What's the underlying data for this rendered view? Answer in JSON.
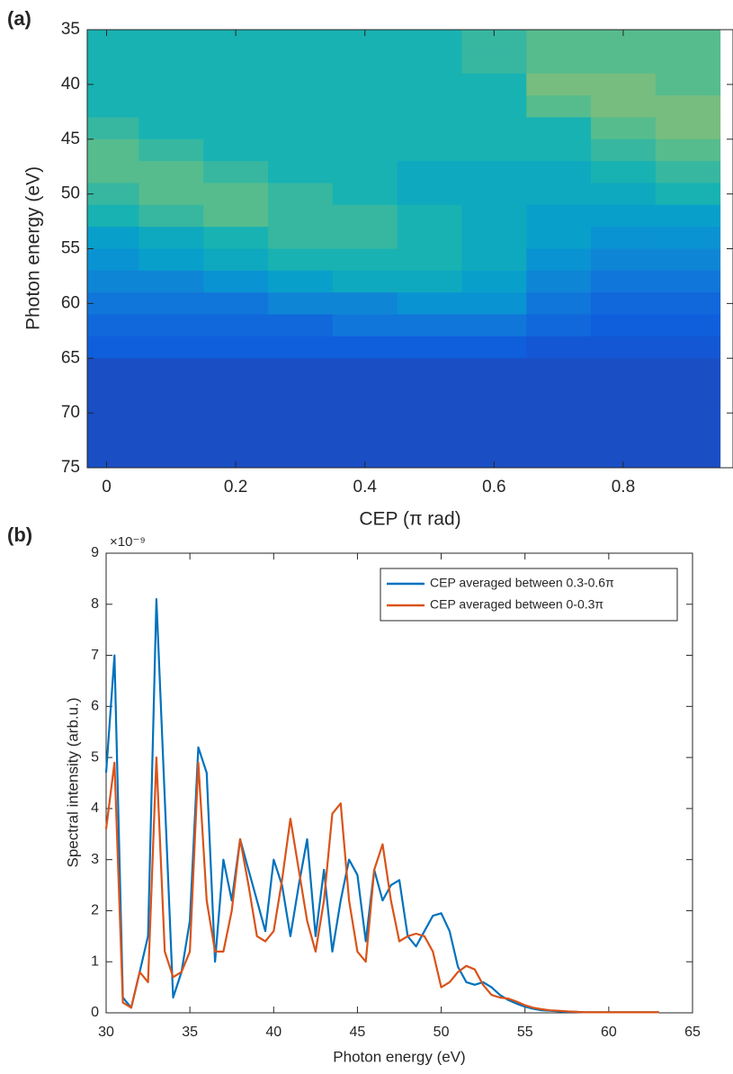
{
  "chart_data": [
    {
      "type": "heatmap",
      "panel_label": "(a)",
      "x_label": "CEP (π rad)",
      "y_label": "Photon energy (eV)",
      "colormap": "parula",
      "y_reversed": true,
      "x": [
        0,
        0.1,
        0.2,
        0.3,
        0.4,
        0.5,
        0.6,
        0.7,
        0.8,
        0.9
      ],
      "y": [
        36,
        38,
        40,
        42,
        44,
        46,
        48,
        50,
        52,
        54,
        56,
        58,
        60,
        62,
        64,
        66,
        68,
        70,
        72,
        74
      ],
      "values": [
        [
          0.45,
          0.45,
          0.45,
          0.45,
          0.45,
          0.45,
          0.5,
          0.55,
          0.55,
          0.55
        ],
        [
          0.45,
          0.45,
          0.45,
          0.45,
          0.45,
          0.45,
          0.5,
          0.55,
          0.55,
          0.55
        ],
        [
          0.45,
          0.45,
          0.45,
          0.45,
          0.45,
          0.45,
          0.45,
          0.6,
          0.6,
          0.55
        ],
        [
          0.45,
          0.45,
          0.45,
          0.45,
          0.45,
          0.45,
          0.45,
          0.55,
          0.6,
          0.6
        ],
        [
          0.5,
          0.45,
          0.45,
          0.45,
          0.45,
          0.45,
          0.45,
          0.45,
          0.55,
          0.6
        ],
        [
          0.55,
          0.5,
          0.45,
          0.45,
          0.45,
          0.45,
          0.45,
          0.45,
          0.5,
          0.55
        ],
        [
          0.55,
          0.55,
          0.5,
          0.45,
          0.45,
          0.4,
          0.4,
          0.4,
          0.45,
          0.5
        ],
        [
          0.5,
          0.55,
          0.55,
          0.5,
          0.45,
          0.4,
          0.4,
          0.4,
          0.4,
          0.45
        ],
        [
          0.45,
          0.5,
          0.55,
          0.5,
          0.5,
          0.45,
          0.4,
          0.35,
          0.35,
          0.35
        ],
        [
          0.35,
          0.4,
          0.45,
          0.5,
          0.5,
          0.45,
          0.4,
          0.35,
          0.3,
          0.3
        ],
        [
          0.3,
          0.35,
          0.4,
          0.45,
          0.45,
          0.45,
          0.4,
          0.3,
          0.25,
          0.25
        ],
        [
          0.25,
          0.25,
          0.3,
          0.35,
          0.4,
          0.4,
          0.35,
          0.25,
          0.2,
          0.2
        ],
        [
          0.2,
          0.2,
          0.2,
          0.25,
          0.25,
          0.3,
          0.3,
          0.2,
          0.15,
          0.15
        ],
        [
          0.15,
          0.15,
          0.15,
          0.15,
          0.2,
          0.2,
          0.2,
          0.15,
          0.12,
          0.12
        ],
        [
          0.12,
          0.12,
          0.12,
          0.12,
          0.12,
          0.12,
          0.12,
          0.1,
          0.1,
          0.1
        ],
        [
          0.08,
          0.08,
          0.08,
          0.08,
          0.08,
          0.08,
          0.08,
          0.08,
          0.08,
          0.08
        ],
        [
          0.08,
          0.08,
          0.08,
          0.08,
          0.08,
          0.08,
          0.08,
          0.08,
          0.08,
          0.08
        ],
        [
          0.08,
          0.08,
          0.08,
          0.08,
          0.08,
          0.08,
          0.08,
          0.08,
          0.08,
          0.08
        ],
        [
          0.08,
          0.08,
          0.08,
          0.08,
          0.08,
          0.08,
          0.08,
          0.08,
          0.08,
          0.08
        ],
        [
          0.08,
          0.08,
          0.08,
          0.08,
          0.08,
          0.08,
          0.08,
          0.08,
          0.08,
          0.08
        ]
      ],
      "xlim": [
        -0.03,
        0.97
      ],
      "xticks": [
        0,
        0.2,
        0.4,
        0.6,
        0.8
      ],
      "ylim": [
        35,
        75
      ],
      "yticks": [
        35,
        40,
        45,
        50,
        55,
        60,
        65,
        70,
        75
      ]
    },
    {
      "type": "line",
      "panel_label": "(b)",
      "x_label": "Photon energy (eV)",
      "y_label": "Spectral intensity (arb.u.)",
      "y_multiplier": "×10⁻⁹",
      "legend": "upper right",
      "x": [
        30,
        30.5,
        31,
        31.5,
        32,
        32.5,
        33,
        33.5,
        34,
        34.5,
        35,
        35.5,
        36,
        36.5,
        37,
        37.5,
        38,
        38.5,
        39,
        39.5,
        40,
        40.5,
        41,
        41.5,
        42,
        42.5,
        43,
        43.5,
        44,
        44.5,
        45,
        45.5,
        46,
        46.5,
        47,
        47.5,
        48,
        48.5,
        49,
        49.5,
        50,
        50.5,
        51,
        51.5,
        52,
        52.5,
        53,
        53.5,
        54,
        54.5,
        55,
        55.5,
        56,
        56.5,
        57,
        57.5,
        58,
        58.5,
        59,
        59.5,
        60,
        60.5,
        61,
        61.5,
        62,
        62.5,
        63
      ],
      "series": [
        {
          "name": "CEP averaged between 0.3-0.6π",
          "color": "#0072bd",
          "values": [
            4.7,
            7.0,
            0.3,
            0.1,
            0.8,
            1.5,
            8.1,
            4.2,
            0.3,
            0.8,
            1.8,
            5.2,
            4.7,
            1.0,
            3.0,
            2.2,
            3.4,
            2.8,
            2.2,
            1.6,
            3.0,
            2.5,
            1.5,
            2.5,
            3.4,
            1.5,
            2.8,
            1.2,
            2.2,
            3.0,
            2.7,
            1.4,
            2.8,
            2.2,
            2.5,
            2.6,
            1.5,
            1.3,
            1.6,
            1.9,
            1.95,
            1.6,
            0.9,
            0.6,
            0.55,
            0.6,
            0.5,
            0.35,
            0.25,
            0.18,
            0.12,
            0.08,
            0.05,
            0.04,
            0.03,
            0.02,
            0.02,
            0.01,
            0.01,
            0.01,
            0.01,
            0.01,
            0.01,
            0.01,
            0.01,
            0.01,
            0.01
          ]
        },
        {
          "name": "CEP averaged between 0-0.3π",
          "color": "#d95319",
          "values": [
            3.6,
            4.9,
            0.2,
            0.1,
            0.8,
            0.6,
            5.0,
            1.2,
            0.7,
            0.8,
            1.2,
            4.9,
            2.2,
            1.2,
            1.2,
            2.0,
            3.4,
            2.5,
            1.5,
            1.4,
            1.6,
            2.6,
            3.8,
            2.8,
            1.8,
            1.2,
            2.2,
            3.9,
            4.1,
            2.2,
            1.2,
            1.0,
            2.8,
            3.3,
            2.2,
            1.4,
            1.5,
            1.55,
            1.5,
            1.2,
            0.5,
            0.6,
            0.8,
            0.92,
            0.85,
            0.55,
            0.35,
            0.3,
            0.28,
            0.22,
            0.15,
            0.1,
            0.07,
            0.05,
            0.04,
            0.03,
            0.02,
            0.01,
            0.01,
            0.01,
            0.01,
            0.01,
            0.01,
            0.01,
            0.01,
            0.01,
            0.01
          ]
        }
      ],
      "xlim": [
        30,
        65
      ],
      "xticks": [
        30,
        35,
        40,
        45,
        50,
        55,
        60,
        65
      ],
      "ylim": [
        0,
        9
      ],
      "yticks": [
        0,
        1,
        2,
        3,
        4,
        5,
        6,
        7,
        8,
        9
      ]
    }
  ]
}
